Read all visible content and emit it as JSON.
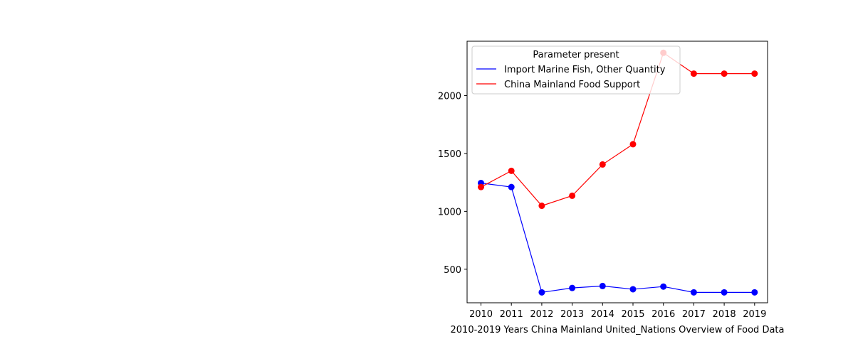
{
  "chart_data": {
    "type": "line",
    "title": "",
    "xlabel": "2010-2019 Years China Mainland United_Nations Overview of Food Data",
    "ylabel": "",
    "categories": [
      "2010",
      "2011",
      "2012",
      "2013",
      "2014",
      "2015",
      "2016",
      "2017",
      "2018",
      "2019"
    ],
    "yticks": [
      500,
      1000,
      1500,
      2000
    ],
    "ylim": [
      210,
      2470
    ],
    "grid": false,
    "legend": {
      "title": "Parameter present",
      "position": "top-left"
    },
    "series": [
      {
        "name": "Import Marine Fish, Other Quantity",
        "color": "#0000ff",
        "values": [
          1245,
          1210,
          300,
          338,
          355,
          327,
          350,
          300,
          300,
          300
        ]
      },
      {
        "name": "China Mainland Food Support",
        "color": "#ff0000",
        "values": [
          1210,
          1350,
          1048,
          1135,
          1405,
          1580,
          2370,
          2190,
          2190,
          2190
        ]
      }
    ]
  }
}
